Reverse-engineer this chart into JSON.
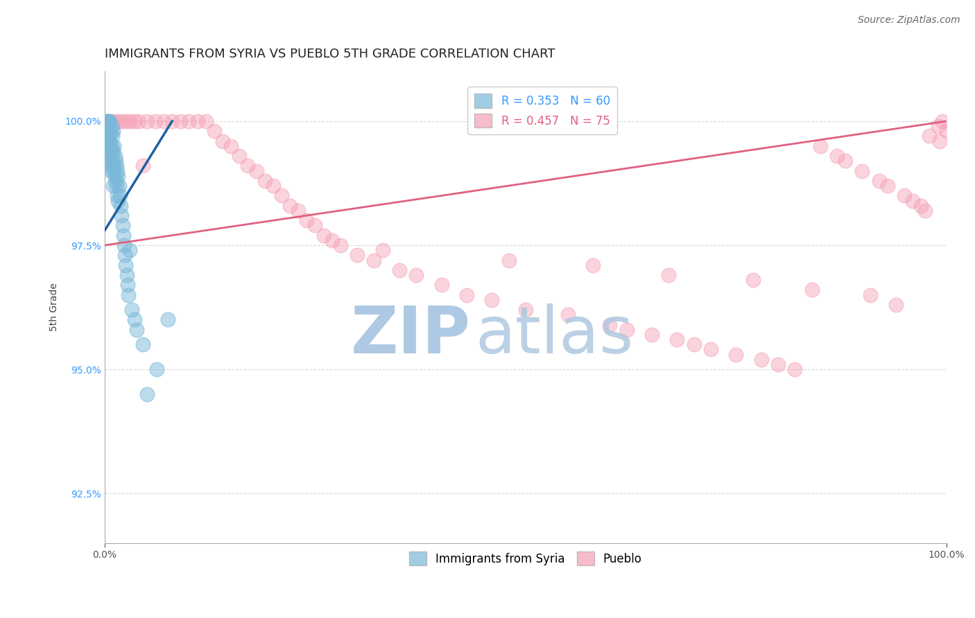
{
  "title": "IMMIGRANTS FROM SYRIA VS PUEBLO 5TH GRADE CORRELATION CHART",
  "source_text": "Source: ZipAtlas.com",
  "ylabel": "5th Grade",
  "xlim": [
    0,
    100
  ],
  "ylim": [
    91.5,
    101.0
  ],
  "yticks": [
    92.5,
    95.0,
    97.5,
    100.0
  ],
  "ytick_labels": [
    "92.5%",
    "95.0%",
    "97.5%",
    "100.0%"
  ],
  "xtick_positions": [
    0,
    100
  ],
  "xtick_labels": [
    "0.0%",
    "100.0%"
  ],
  "legend_blue_label": "Immigrants from Syria",
  "legend_pink_label": "Pueblo",
  "legend_r_blue": "R = 0.353",
  "legend_n_blue": "N = 60",
  "legend_r_pink": "R = 0.457",
  "legend_n_pink": "N = 75",
  "blue_color": "#7ab8d9",
  "pink_color": "#f4a0b5",
  "blue_line_color": "#2060a0",
  "pink_line_color": "#e06080",
  "watermark_zip": "ZIP",
  "watermark_atlas": "atlas",
  "blue_scatter_x": [
    0.1,
    0.2,
    0.2,
    0.3,
    0.3,
    0.3,
    0.4,
    0.4,
    0.5,
    0.5,
    0.5,
    0.6,
    0.6,
    0.6,
    0.7,
    0.7,
    0.7,
    0.8,
    0.8,
    0.8,
    0.9,
    0.9,
    1.0,
    1.0,
    1.0,
    1.0,
    1.1,
    1.1,
    1.2,
    1.2,
    1.3,
    1.3,
    1.4,
    1.4,
    1.5,
    1.5,
    1.6,
    1.6,
    1.7,
    1.8,
    1.9,
    2.0,
    2.1,
    2.2,
    2.3,
    2.4,
    2.5,
    2.6,
    2.7,
    2.8,
    3.0,
    3.2,
    3.5,
    3.8,
    4.5,
    5.0,
    6.2,
    7.5,
    0.15,
    0.25
  ],
  "blue_scatter_y": [
    100.0,
    100.0,
    99.8,
    100.0,
    99.6,
    99.4,
    99.8,
    99.5,
    100.0,
    99.7,
    99.3,
    100.0,
    99.6,
    99.2,
    99.8,
    99.4,
    99.0,
    99.9,
    99.5,
    99.1,
    99.7,
    99.2,
    99.8,
    99.4,
    99.0,
    98.7,
    99.5,
    99.1,
    99.3,
    98.9,
    99.2,
    98.8,
    99.1,
    98.7,
    99.0,
    98.5,
    98.9,
    98.4,
    98.7,
    98.5,
    98.3,
    98.1,
    97.9,
    97.7,
    97.5,
    97.3,
    97.1,
    96.9,
    96.7,
    96.5,
    97.4,
    96.2,
    96.0,
    95.8,
    95.5,
    94.5,
    95.0,
    96.0,
    99.9,
    99.7
  ],
  "pink_scatter_x": [
    0.5,
    1.0,
    1.5,
    2.0,
    2.5,
    3.0,
    3.5,
    4.0,
    5.0,
    6.0,
    7.0,
    8.0,
    9.0,
    10.0,
    11.0,
    12.0,
    13.0,
    14.0,
    15.0,
    16.0,
    17.0,
    18.0,
    19.0,
    20.0,
    21.0,
    22.0,
    23.0,
    24.0,
    25.0,
    26.0,
    28.0,
    30.0,
    32.0,
    35.0,
    37.0,
    40.0,
    43.0,
    46.0,
    50.0,
    55.0,
    60.0,
    62.0,
    65.0,
    68.0,
    70.0,
    72.0,
    75.0,
    78.0,
    80.0,
    82.0,
    85.0,
    87.0,
    88.0,
    90.0,
    92.0,
    93.0,
    95.0,
    96.0,
    97.0,
    98.0,
    99.0,
    99.5,
    100.0,
    4.5,
    27.0,
    33.0,
    48.0,
    58.0,
    67.0,
    77.0,
    84.0,
    91.0,
    94.0,
    97.5,
    99.2
  ],
  "pink_scatter_y": [
    100.0,
    100.0,
    100.0,
    100.0,
    100.0,
    100.0,
    100.0,
    100.0,
    100.0,
    100.0,
    100.0,
    100.0,
    100.0,
    100.0,
    100.0,
    100.0,
    99.8,
    99.6,
    99.5,
    99.3,
    99.1,
    99.0,
    98.8,
    98.7,
    98.5,
    98.3,
    98.2,
    98.0,
    97.9,
    97.7,
    97.5,
    97.3,
    97.2,
    97.0,
    96.9,
    96.7,
    96.5,
    96.4,
    96.2,
    96.1,
    95.9,
    95.8,
    95.7,
    95.6,
    95.5,
    95.4,
    95.3,
    95.2,
    95.1,
    95.0,
    99.5,
    99.3,
    99.2,
    99.0,
    98.8,
    98.7,
    98.5,
    98.4,
    98.3,
    99.7,
    99.9,
    100.0,
    99.8,
    99.1,
    97.6,
    97.4,
    97.2,
    97.1,
    96.9,
    96.8,
    96.6,
    96.5,
    96.3,
    98.2,
    99.6
  ],
  "blue_trend_x": [
    0.0,
    8.0
  ],
  "blue_trend_y": [
    97.8,
    100.0
  ],
  "pink_trend_x": [
    0.0,
    100.0
  ],
  "pink_trend_y": [
    97.5,
    100.0
  ],
  "grid_color": "#bbbbbb",
  "background_color": "#ffffff",
  "title_fontsize": 13,
  "axis_label_fontsize": 10,
  "tick_fontsize": 10,
  "legend_fontsize": 12,
  "watermark_color_zip": "#a0c0e0",
  "watermark_color_atlas": "#b0c8e0",
  "source_fontsize": 10,
  "source_color": "#666666",
  "ytick_color": "#3399ff",
  "xtick_color": "#555555"
}
